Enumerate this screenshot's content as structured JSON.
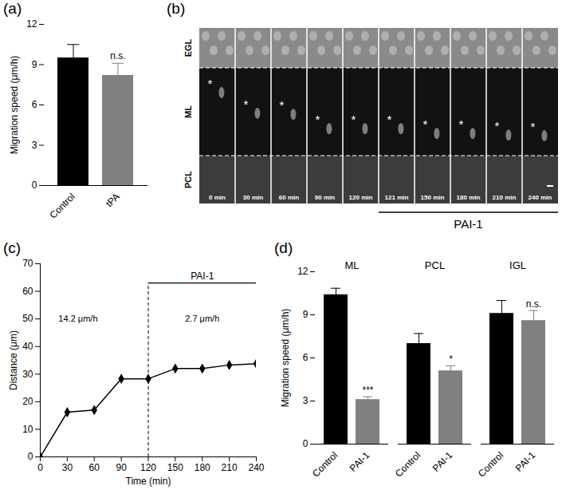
{
  "chart_data": [
    {
      "type": "bar",
      "title": "(a)",
      "categories": [
        "Control",
        "tPA"
      ],
      "values": [
        9.5,
        8.2
      ],
      "errors": [
        1.0,
        0.9
      ],
      "colors": [
        "#000000",
        "#808080"
      ],
      "y_label": "Migration speed (μm/h)",
      "ylim": [
        0,
        12
      ],
      "yticks": [
        0,
        3,
        6,
        9,
        12
      ],
      "annotations": [
        {
          "text": "n.s.",
          "category": "tPA"
        }
      ]
    },
    {
      "type": "image",
      "title": "(b)",
      "layers": [
        "EGL",
        "ML",
        "PCL"
      ],
      "frames": [
        {
          "time": 0,
          "label": "0 min"
        },
        {
          "time": 30,
          "label": "30 min"
        },
        {
          "time": 60,
          "label": "60 min"
        },
        {
          "time": 90,
          "label": "90 min"
        },
        {
          "time": 120,
          "label": "120 min"
        },
        {
          "time": 121,
          "label": "121 min"
        },
        {
          "time": 150,
          "label": "150 min"
        },
        {
          "time": 180,
          "label": "180 min"
        },
        {
          "time": 210,
          "label": "210 min"
        },
        {
          "time": 240,
          "label": "240 min"
        }
      ],
      "marker": "*",
      "treatment": {
        "label": "PAI-1",
        "from": 121
      }
    },
    {
      "type": "line",
      "title": "(c)",
      "x": [
        0,
        30,
        60,
        90,
        120,
        150,
        180,
        210,
        240
      ],
      "values": [
        0,
        16.2,
        17,
        28.3,
        28.3,
        32,
        32,
        33.3,
        33.8
      ],
      "color": "#000000",
      "marker": "diamond",
      "x_label": "Time (min)",
      "y_label": "Distance (μm)",
      "xlim": [
        0,
        240
      ],
      "xticks": [
        0,
        30,
        60,
        90,
        120,
        150,
        180,
        210,
        240
      ],
      "ylim": [
        0,
        70
      ],
      "yticks": [
        0,
        10,
        20,
        30,
        40,
        50,
        60,
        70
      ],
      "annotations": [
        {
          "text": "14.2 μm/h",
          "x": 42,
          "y": 50
        },
        {
          "text": "2.7 μm/h",
          "x": 180,
          "y": 50
        }
      ],
      "treatment": {
        "label": "PAI-1",
        "x": [
          120,
          240
        ],
        "y": 63
      }
    },
    {
      "type": "bar",
      "title": "(d)",
      "groups": [
        "ML",
        "PCL",
        "IGL"
      ],
      "series": [
        {
          "name": "Control",
          "color": "#000000",
          "values": [
            10.4,
            7.0,
            9.1
          ],
          "errors": [
            0.45,
            0.7,
            0.9
          ]
        },
        {
          "name": "PAI-1",
          "color": "#808080",
          "values": [
            3.1,
            5.1,
            8.6
          ],
          "errors": [
            0.2,
            0.35,
            0.7
          ]
        }
      ],
      "y_label": "Migration speed (μm/h)",
      "ylim": [
        0,
        12
      ],
      "yticks": [
        0,
        3,
        6,
        9,
        12
      ],
      "annotations": [
        {
          "text": "***",
          "group": "ML",
          "series": "PAI-1"
        },
        {
          "text": "*",
          "group": "PCL",
          "series": "PAI-1"
        },
        {
          "text": "n.s.",
          "group": "IGL",
          "series": "PAI-1"
        }
      ]
    }
  ]
}
